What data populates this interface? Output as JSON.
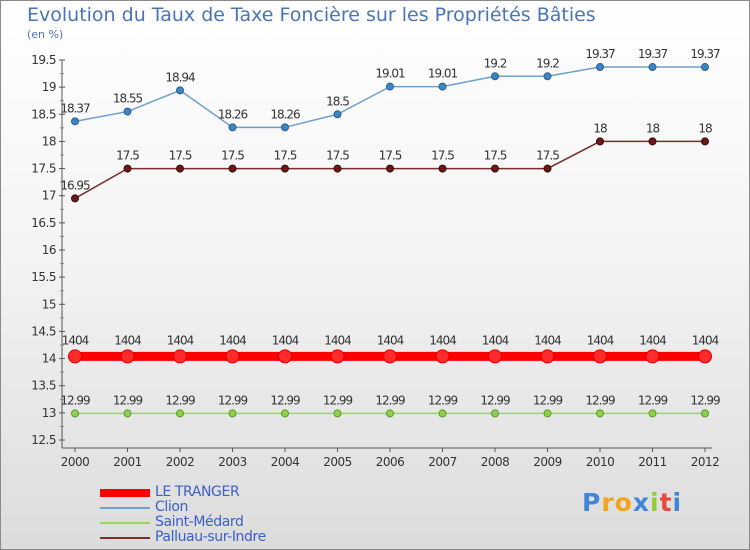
{
  "title": "Evolution du Taux de Taxe Foncière sur les Propriétés Bâties",
  "unit_label": "(en %)",
  "chart_data": {
    "type": "line",
    "x": [
      "2000",
      "2001",
      "2002",
      "2003",
      "2004",
      "2005",
      "2006",
      "2007",
      "2008",
      "2009",
      "2010",
      "2011",
      "2012"
    ],
    "ylim": [
      12.5,
      19.5
    ],
    "yticks": [
      "12.5",
      "13",
      "13.5",
      "14",
      "14.5",
      "15",
      "15.5",
      "16",
      "16.5",
      "17",
      "17.5",
      "18",
      "18.5",
      "19",
      "19.5"
    ],
    "grid": false,
    "series": [
      {
        "name": "LE TRANGER",
        "color": "#ff0000",
        "values": [
          14.04,
          14.04,
          14.04,
          14.04,
          14.04,
          14.04,
          14.04,
          14.04,
          14.04,
          14.04,
          14.04,
          14.04,
          14.04
        ],
        "labels": [
          "1404",
          "1404",
          "1404",
          "1404",
          "1404",
          "1404",
          "1404",
          "1404",
          "1404",
          "1404",
          "1404",
          "1404",
          "1404"
        ]
      },
      {
        "name": "Clion",
        "color": "#6fa0cc",
        "values": [
          18.37,
          18.55,
          18.94,
          18.26,
          18.26,
          18.5,
          19.01,
          19.01,
          19.2,
          19.2,
          19.37,
          19.37,
          19.37
        ],
        "labels": [
          "18.37",
          "18.55",
          "18.94",
          "18.26",
          "18.26",
          "18.5",
          "19.01",
          "19.01",
          "19.2",
          "19.2",
          "19.37",
          "19.37",
          "19.37"
        ]
      },
      {
        "name": "Saint-Médard",
        "color": "#99d955",
        "values": [
          12.99,
          12.99,
          12.99,
          12.99,
          12.99,
          12.99,
          12.99,
          12.99,
          12.99,
          12.99,
          12.99,
          12.99,
          12.99
        ],
        "labels": [
          "12.99",
          "12.99",
          "12.99",
          "12.99",
          "12.99",
          "12.99",
          "12.99",
          "12.99",
          "12.99",
          "12.99",
          "12.99",
          "12.99",
          "12.99"
        ]
      },
      {
        "name": "Palluau-sur-Indre",
        "color": "#7b2c2c",
        "values": [
          16.95,
          17.5,
          17.5,
          17.5,
          17.5,
          17.5,
          17.5,
          17.5,
          17.5,
          17.5,
          18,
          18,
          18
        ],
        "labels": [
          "16.95",
          "17.5",
          "17.5",
          "17.5",
          "17.5",
          "17.5",
          "17.5",
          "17.5",
          "17.5",
          "17.5",
          "18",
          "18",
          "18"
        ]
      }
    ]
  },
  "logo": {
    "text": "Proxiti"
  }
}
